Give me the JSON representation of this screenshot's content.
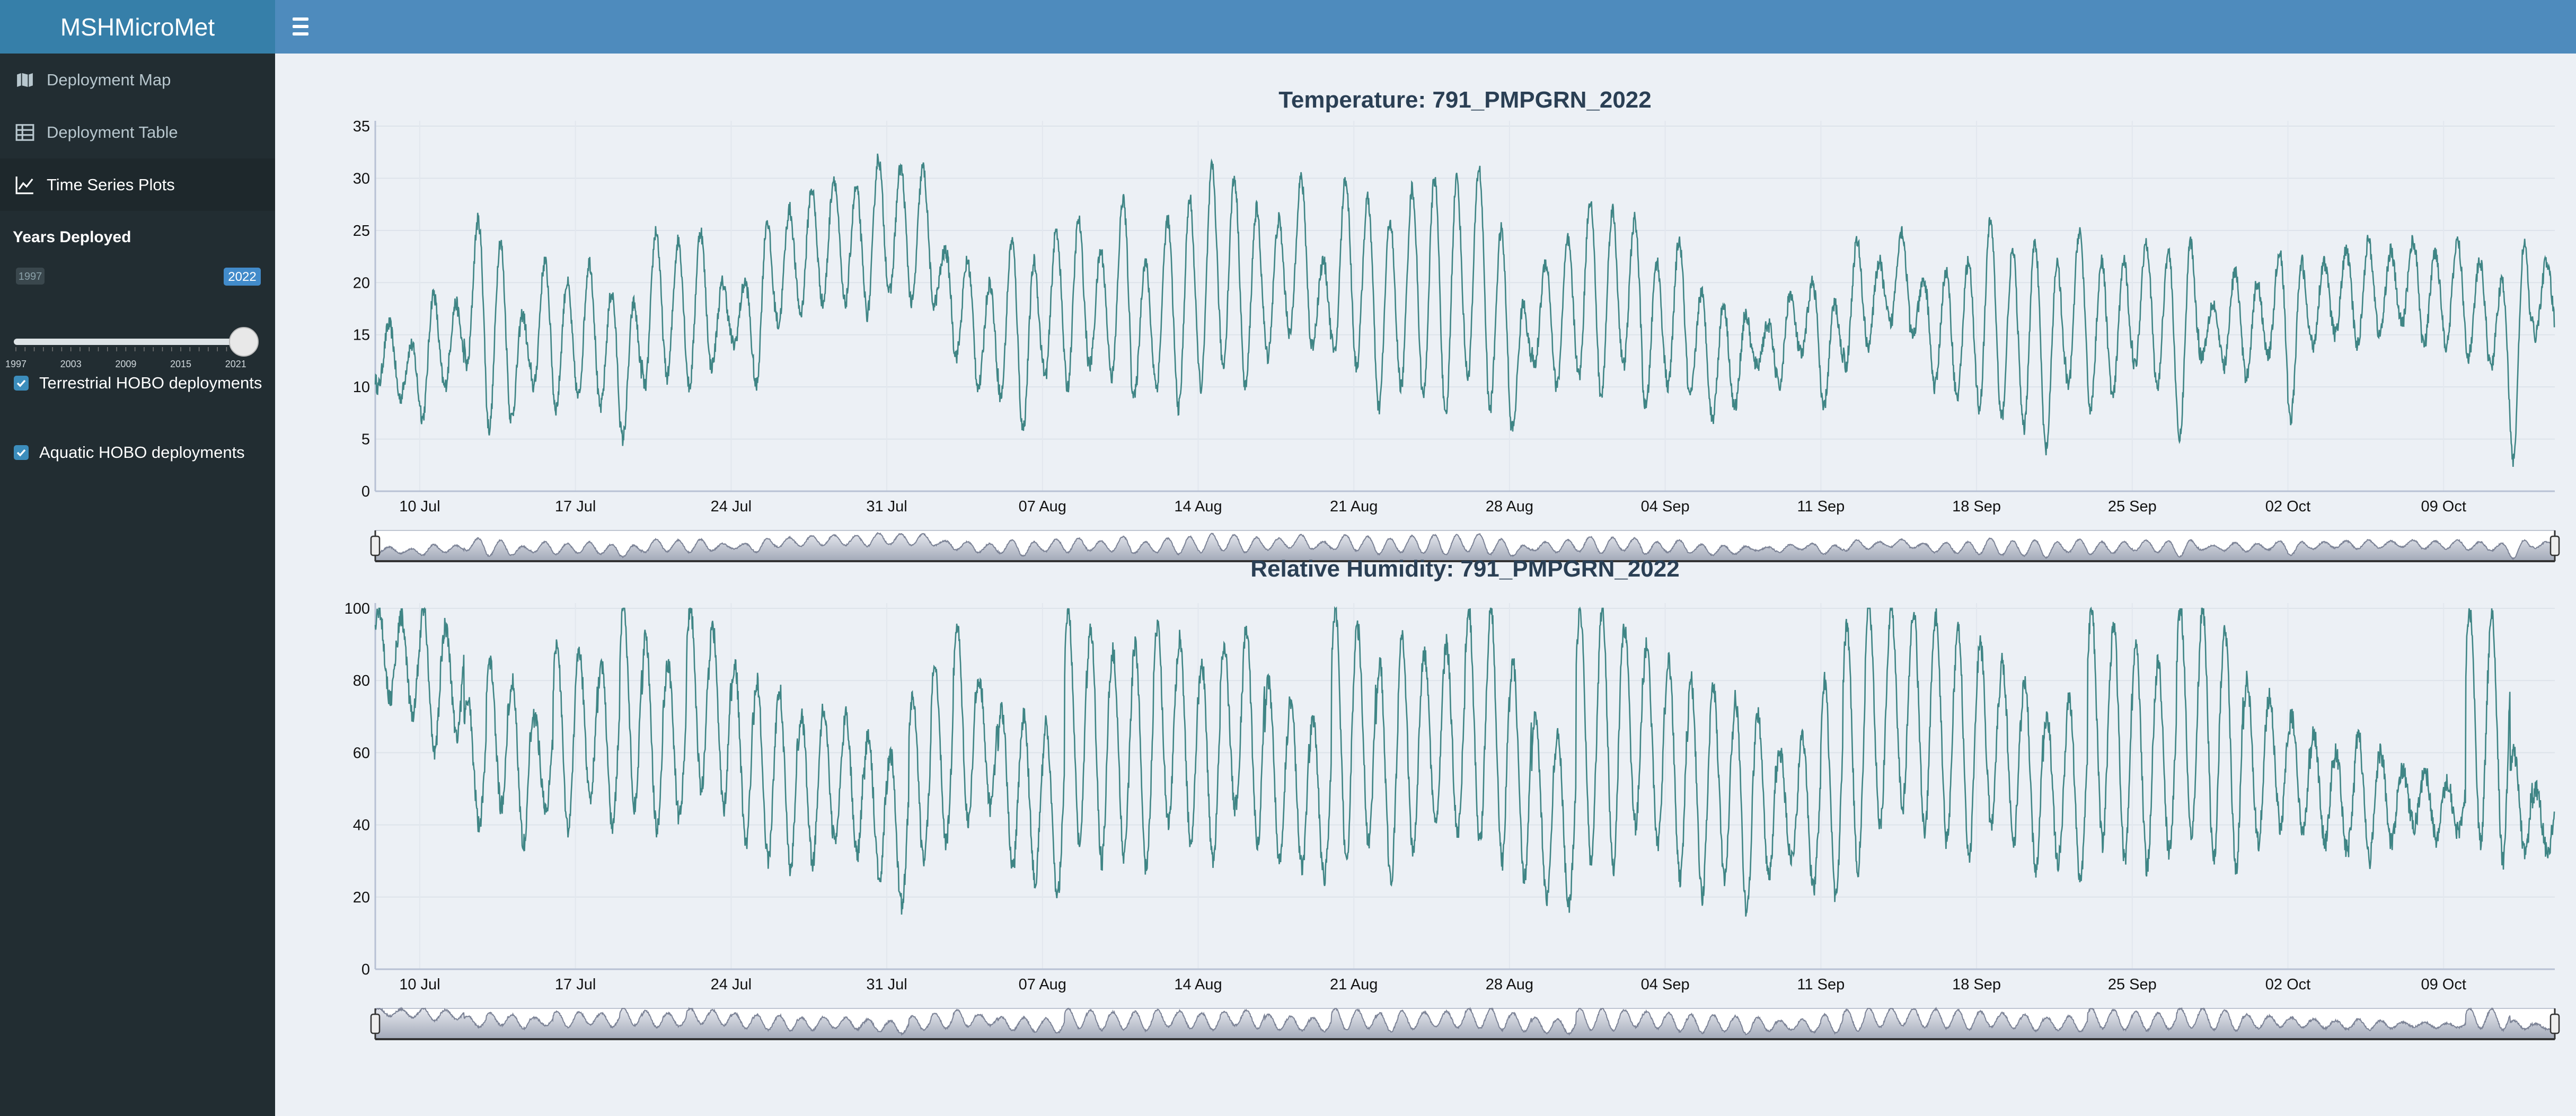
{
  "app": {
    "title": "MSHMicroMet"
  },
  "colors": {
    "header": "#4e8bbd",
    "logo_bg": "#367fa9",
    "sidebar": "#222d32",
    "accent": "#3c8dbc",
    "line": "#3f8585",
    "rangeslider_fill": "#a2a9b8"
  },
  "sidebar": {
    "items": [
      {
        "label": "Deployment Map",
        "icon": "map-icon"
      },
      {
        "label": "Deployment Table",
        "icon": "table-icon"
      },
      {
        "label": "Time Series Plots",
        "icon": "line-chart-icon",
        "active": true
      }
    ],
    "years": {
      "label": "Years Deployed",
      "min": 1997,
      "max": 2022,
      "min_label": "1997",
      "value_label": "2022",
      "ticks": [
        "1997",
        "2003",
        "2009",
        "2015",
        "2021"
      ]
    },
    "checkboxes": [
      {
        "label": "Terrestrial HOBO deployments",
        "checked": true
      },
      {
        "label": "Aquatic HOBO deployments",
        "checked": true
      }
    ]
  },
  "chart_data": [
    {
      "type": "line",
      "title": "Temperature: 791_PMPGRN_2022",
      "x_start": "2022-07-08",
      "x_end": "2022-10-14",
      "x_ticks": [
        "10 Jul",
        "17 Jul",
        "24 Jul",
        "31 Jul",
        "07 Aug",
        "14 Aug",
        "21 Aug",
        "28 Aug",
        "04 Sep",
        "11 Sep",
        "18 Sep",
        "25 Sep",
        "02 Oct",
        "09 Oct"
      ],
      "y_ticks": [
        "0",
        "5",
        "10",
        "15",
        "20",
        "25",
        "30",
        "35"
      ],
      "ylim": [
        0,
        35
      ],
      "grid": true,
      "rangeslider": true,
      "series": [
        {
          "x": [
            "2022-07-08",
            "2022-07-09",
            "2022-07-10",
            "2022-07-11",
            "2022-07-12",
            "2022-07-13",
            "2022-07-14",
            "2022-07-15",
            "2022-07-16",
            "2022-07-17",
            "2022-07-18",
            "2022-07-19",
            "2022-07-20",
            "2022-07-21",
            "2022-07-22",
            "2022-07-23",
            "2022-07-24",
            "2022-07-25",
            "2022-07-26",
            "2022-07-27",
            "2022-07-28",
            "2022-07-29",
            "2022-07-30",
            "2022-07-31",
            "2022-08-01",
            "2022-08-02",
            "2022-08-03",
            "2022-08-04",
            "2022-08-05",
            "2022-08-06",
            "2022-08-07",
            "2022-08-08",
            "2022-08-09",
            "2022-08-10",
            "2022-08-11",
            "2022-08-12",
            "2022-08-13",
            "2022-08-14",
            "2022-08-15",
            "2022-08-16",
            "2022-08-17",
            "2022-08-18",
            "2022-08-19",
            "2022-08-20",
            "2022-08-21",
            "2022-08-22",
            "2022-08-23",
            "2022-08-24",
            "2022-08-25",
            "2022-08-26",
            "2022-08-27",
            "2022-08-28",
            "2022-08-29",
            "2022-08-30",
            "2022-08-31",
            "2022-09-01",
            "2022-09-02",
            "2022-09-03",
            "2022-09-04",
            "2022-09-05",
            "2022-09-06",
            "2022-09-07",
            "2022-09-08",
            "2022-09-09",
            "2022-09-10",
            "2022-09-11",
            "2022-09-12",
            "2022-09-13",
            "2022-09-14",
            "2022-09-15",
            "2022-09-16",
            "2022-09-17",
            "2022-09-18",
            "2022-09-19",
            "2022-09-20",
            "2022-09-21",
            "2022-09-22",
            "2022-09-23",
            "2022-09-24",
            "2022-09-25",
            "2022-09-26",
            "2022-09-27",
            "2022-09-28",
            "2022-09-29",
            "2022-09-30",
            "2022-10-01",
            "2022-10-02",
            "2022-10-03",
            "2022-10-04",
            "2022-10-05",
            "2022-10-06",
            "2022-10-07",
            "2022-10-08",
            "2022-10-09",
            "2022-10-10",
            "2022-10-11",
            "2022-10-12",
            "2022-10-13"
          ],
          "min": [
            10,
            9,
            7,
            10,
            12,
            6,
            7,
            10,
            8,
            9,
            8,
            5,
            10,
            11,
            10,
            12,
            14,
            10,
            16,
            17,
            18,
            18,
            17,
            19,
            18,
            18,
            13,
            10,
            9,
            6,
            11,
            10,
            12,
            11,
            9,
            10,
            8,
            10,
            12,
            10,
            13,
            15,
            14,
            13,
            12,
            8,
            10,
            9,
            7,
            11,
            8,
            6,
            12,
            10,
            11,
            9,
            12,
            8,
            10,
            9,
            7,
            8,
            12,
            10,
            13,
            8,
            12,
            14,
            16,
            15,
            10,
            9,
            8,
            7,
            6,
            4,
            10,
            8,
            9,
            12,
            10,
            5,
            13,
            12,
            11,
            13,
            7,
            14,
            15,
            14,
            15,
            16,
            14,
            14,
            13,
            12,
            3,
            15
          ],
          "max": [
            16,
            14,
            19,
            18,
            26,
            24,
            17,
            22,
            20,
            22,
            19,
            18,
            25,
            24,
            25,
            20,
            20,
            26,
            27,
            29,
            30,
            29,
            32,
            31,
            31,
            23,
            22,
            20,
            24,
            22,
            25,
            26,
            23,
            28,
            22,
            26,
            28,
            31,
            30,
            27,
            26,
            30,
            22,
            30,
            28,
            26,
            29,
            30,
            30,
            31,
            25,
            18,
            22,
            24,
            28,
            27,
            26,
            22,
            24,
            19,
            18,
            17,
            16,
            19,
            20,
            18,
            24,
            22,
            25,
            20,
            21,
            22,
            26,
            23,
            24,
            22,
            25,
            22,
            22,
            24,
            23,
            24,
            18,
            21,
            20,
            23,
            22,
            22,
            23,
            24,
            23,
            24,
            23,
            24,
            22,
            20,
            24,
            22
          ]
        }
      ]
    },
    {
      "type": "line",
      "title": "Relative Humidity: 791_PMPGRN_2022",
      "x_start": "2022-07-08",
      "x_end": "2022-10-14",
      "x_ticks": [
        "10 Jul",
        "17 Jul",
        "24 Jul",
        "31 Jul",
        "07 Aug",
        "14 Aug",
        "21 Aug",
        "28 Aug",
        "04 Sep",
        "11 Sep",
        "18 Sep",
        "25 Sep",
        "02 Oct",
        "09 Oct"
      ],
      "y_ticks": [
        "0",
        "20",
        "40",
        "60",
        "80",
        "100"
      ],
      "ylim": [
        0,
        100
      ],
      "grid": true,
      "rangeslider": true,
      "series": [
        {
          "x": [
            "2022-07-08",
            "2022-07-09",
            "2022-07-10",
            "2022-07-11",
            "2022-07-12",
            "2022-07-13",
            "2022-07-14",
            "2022-07-15",
            "2022-07-16",
            "2022-07-17",
            "2022-07-18",
            "2022-07-19",
            "2022-07-20",
            "2022-07-21",
            "2022-07-22",
            "2022-07-23",
            "2022-07-24",
            "2022-07-25",
            "2022-07-26",
            "2022-07-27",
            "2022-07-28",
            "2022-07-29",
            "2022-07-30",
            "2022-07-31",
            "2022-08-01",
            "2022-08-02",
            "2022-08-03",
            "2022-08-04",
            "2022-08-05",
            "2022-08-06",
            "2022-08-07",
            "2022-08-08",
            "2022-08-09",
            "2022-08-10",
            "2022-08-11",
            "2022-08-12",
            "2022-08-13",
            "2022-08-14",
            "2022-08-15",
            "2022-08-16",
            "2022-08-17",
            "2022-08-18",
            "2022-08-19",
            "2022-08-20",
            "2022-08-21",
            "2022-08-22",
            "2022-08-23",
            "2022-08-24",
            "2022-08-25",
            "2022-08-26",
            "2022-08-27",
            "2022-08-28",
            "2022-08-29",
            "2022-08-30",
            "2022-08-31",
            "2022-09-01",
            "2022-09-02",
            "2022-09-03",
            "2022-09-04",
            "2022-09-05",
            "2022-09-06",
            "2022-09-07",
            "2022-09-08",
            "2022-09-09",
            "2022-09-10",
            "2022-09-11",
            "2022-09-12",
            "2022-09-13",
            "2022-09-14",
            "2022-09-15",
            "2022-09-16",
            "2022-09-17",
            "2022-09-18",
            "2022-09-19",
            "2022-09-20",
            "2022-09-21",
            "2022-09-22",
            "2022-09-23",
            "2022-09-24",
            "2022-09-25",
            "2022-09-26",
            "2022-09-27",
            "2022-09-28",
            "2022-09-29",
            "2022-09-30",
            "2022-10-01",
            "2022-10-02",
            "2022-10-03",
            "2022-10-04",
            "2022-10-05",
            "2022-10-06",
            "2022-10-07",
            "2022-10-08",
            "2022-10-09",
            "2022-10-10",
            "2022-10-11",
            "2022-10-12",
            "2022-10-13"
          ],
          "min": [
            75,
            70,
            60,
            65,
            40,
            45,
            35,
            45,
            38,
            48,
            40,
            45,
            38,
            42,
            50,
            45,
            35,
            30,
            28,
            30,
            35,
            32,
            25,
            18,
            30,
            35,
            40,
            45,
            28,
            25,
            20,
            35,
            30,
            32,
            28,
            40,
            35,
            30,
            45,
            35,
            30,
            28,
            25,
            30,
            35,
            25,
            32,
            40,
            38,
            35,
            30,
            25,
            20,
            18,
            30,
            28,
            40,
            35,
            25,
            20,
            25,
            15,
            25,
            30,
            22,
            20,
            28,
            40,
            45,
            38,
            35,
            30,
            40,
            35,
            28,
            30,
            25,
            35,
            30,
            28,
            32,
            38,
            30,
            28,
            35,
            40,
            38,
            35,
            33,
            30,
            35,
            40,
            36,
            38,
            35,
            30,
            32,
            32
          ],
          "max": [
            100,
            98,
            100,
            95,
            75,
            85,
            80,
            70,
            90,
            88,
            85,
            100,
            92,
            85,
            100,
            95,
            85,
            80,
            78,
            70,
            72,
            70,
            65,
            60,
            75,
            85,
            95,
            80,
            72,
            70,
            68,
            100,
            95,
            88,
            90,
            95,
            92,
            85,
            90,
            95,
            80,
            75,
            70,
            100,
            95,
            85,
            92,
            88,
            90,
            100,
            100,
            85,
            70,
            65,
            100,
            100,
            95,
            90,
            85,
            80,
            78,
            75,
            70,
            60,
            65,
            80,
            95,
            100,
            100,
            100,
            98,
            95,
            90,
            85,
            80,
            70,
            75,
            100,
            95,
            90,
            85,
            100,
            100,
            95,
            80,
            75,
            70,
            65,
            60,
            65,
            60,
            55,
            55,
            52,
            100,
            98,
            60,
            50
          ]
        }
      ]
    }
  ]
}
